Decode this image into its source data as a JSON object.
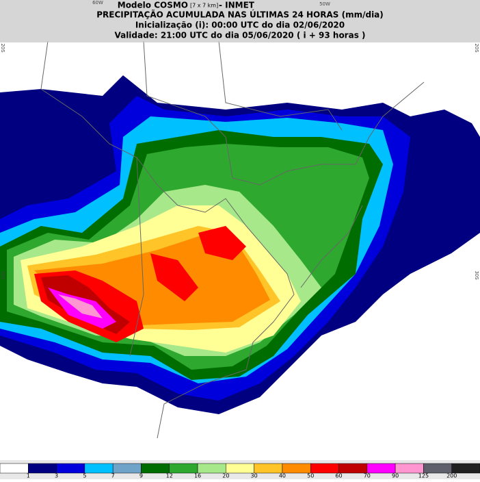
{
  "header": {
    "title": "Modelo COSMO",
    "resolution": "[7 x 7 km]",
    "source": "- INMET",
    "subtitle": "PRECIPITAÇÃO ACUMULADA NAS ÚLTIMAS 24 HORAS (mm/dia)",
    "init": "Inicialização (i): 00:00 UTC do dia 02/06/2020",
    "valid": "Validade: 21:00 UTC do dia 05/06/2020 ( i + 93 horas )"
  },
  "grid_labels": {
    "lon_60": "60W",
    "lon_50": "50W",
    "lat_20_left": "20S",
    "lat_20_right": "20S",
    "lat_30_left": "30S",
    "lat_30_right": "30S"
  },
  "legend": {
    "ticks": [
      "1",
      "3",
      "5",
      "7",
      "9",
      "12",
      "16",
      "20",
      "30",
      "40",
      "50",
      "60",
      "70",
      "90",
      "125",
      "200"
    ],
    "colors": [
      "#ffffff",
      "#000080",
      "#0000dc",
      "#00c0ff",
      "#6fa3c8",
      "#006d00",
      "#2ea82e",
      "#a6e88a",
      "#ffff96",
      "#ffc428",
      "#ff8c00",
      "#ff0000",
      "#c00000",
      "#ff00ff",
      "#ff96d2",
      "#60606c",
      "#202020"
    ]
  }
}
